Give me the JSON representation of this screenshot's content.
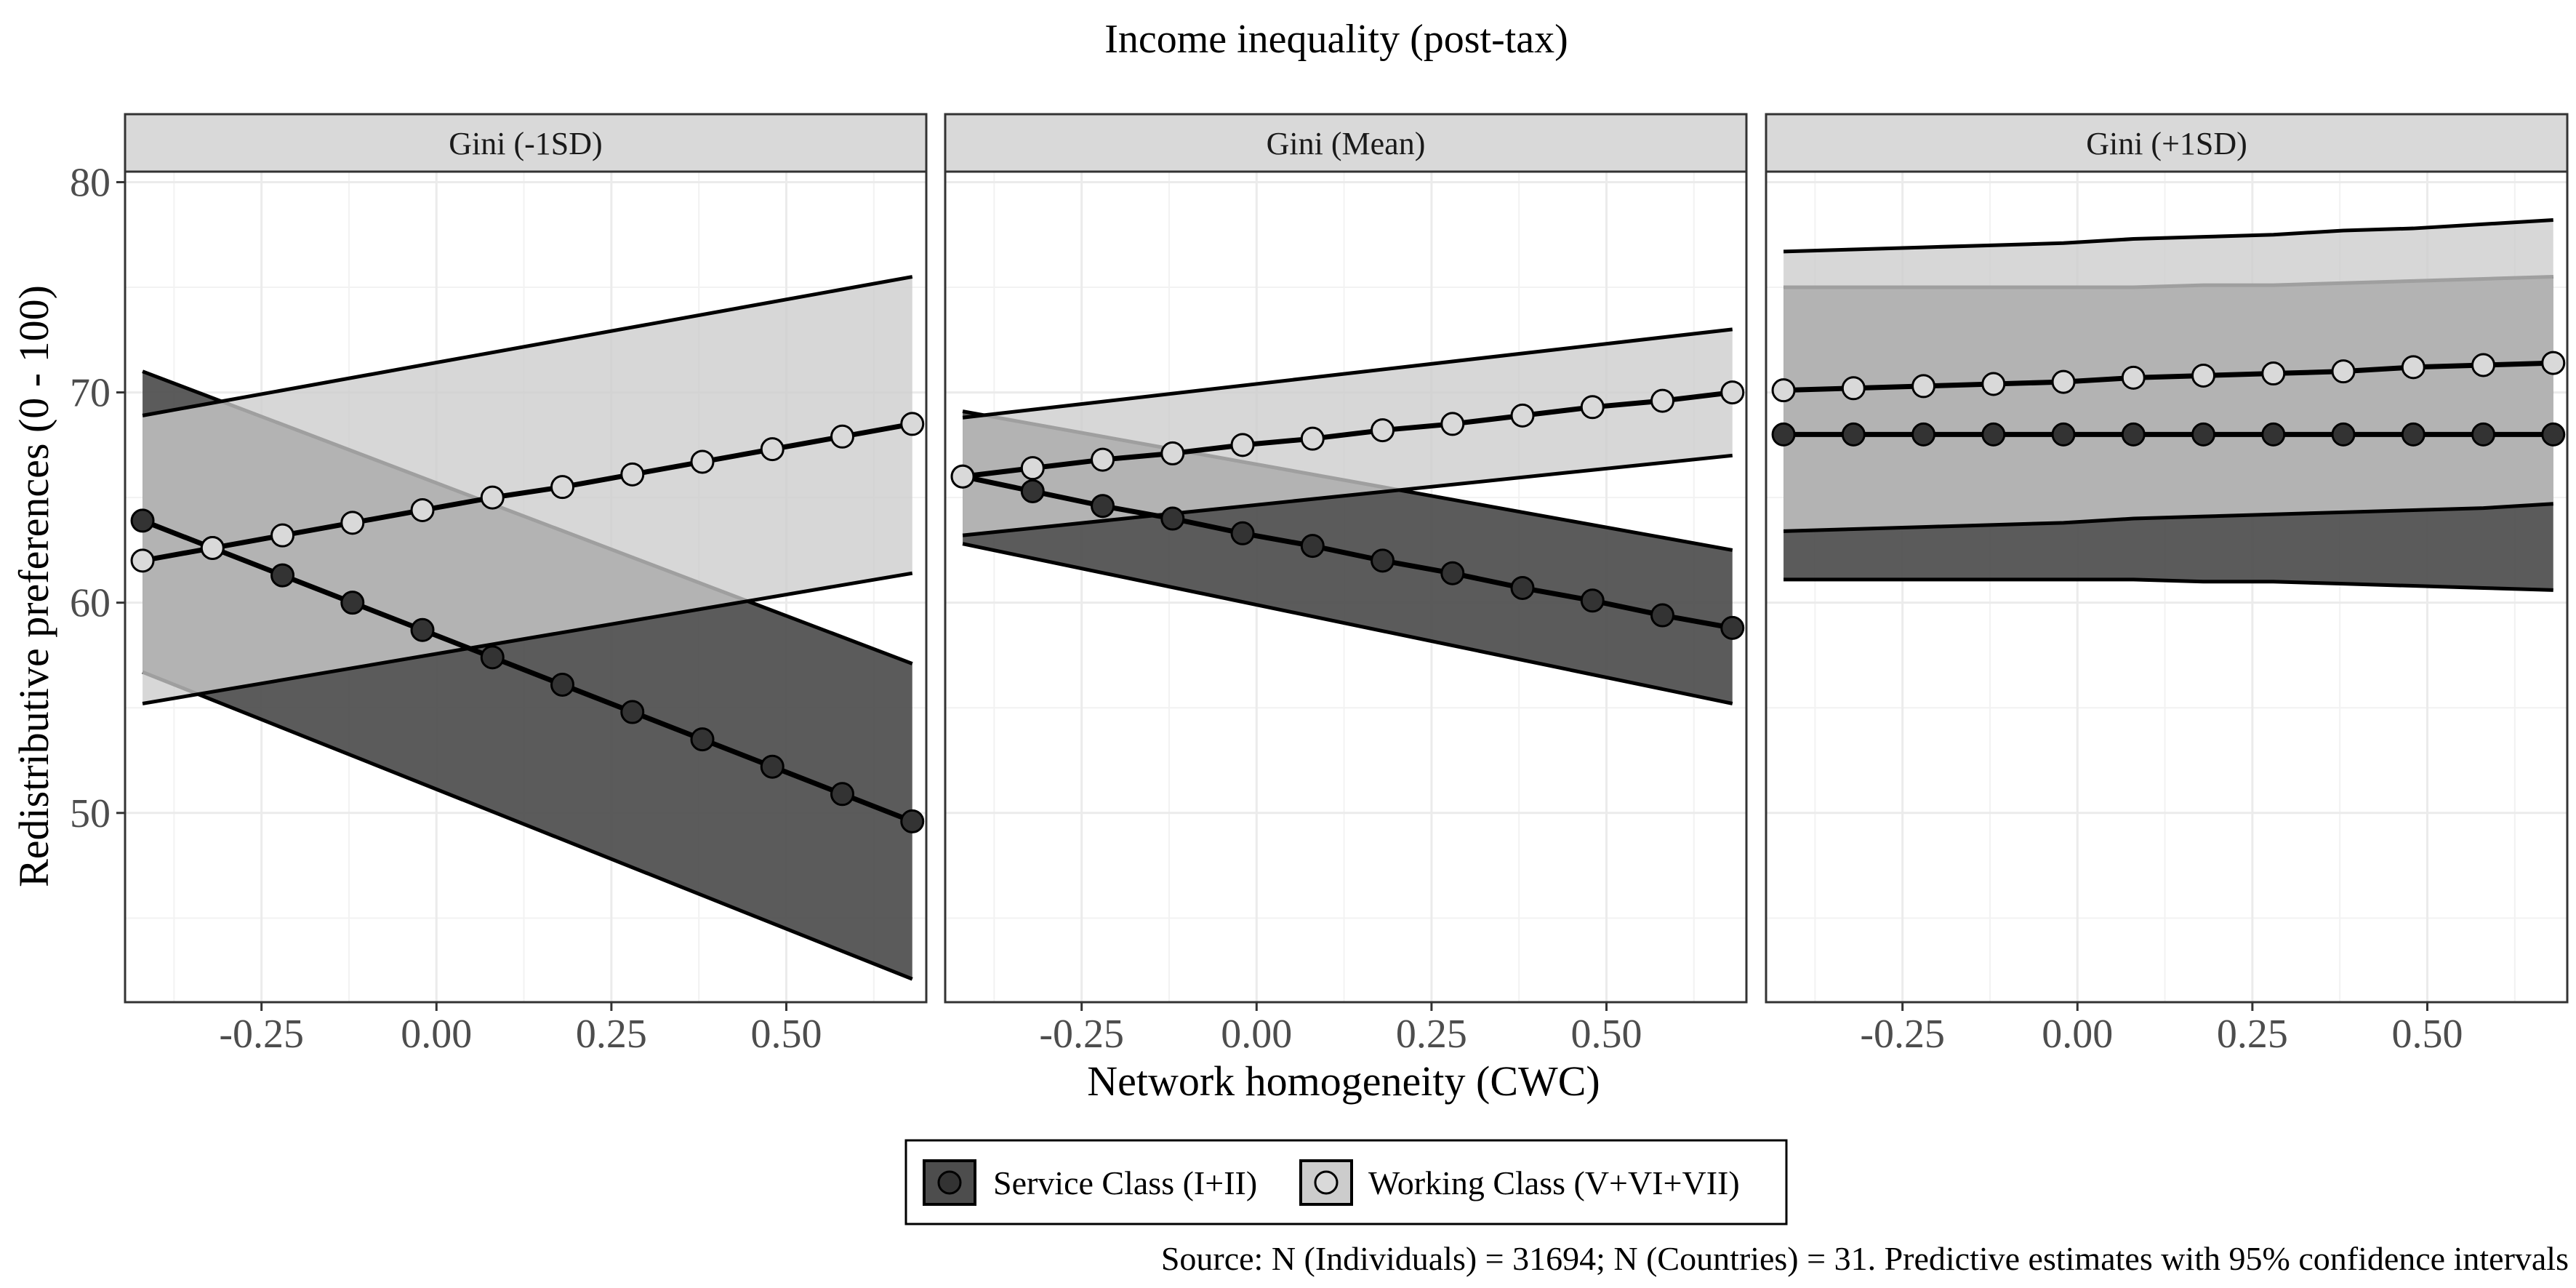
{
  "chart_data": {
    "type": "line",
    "title": "Income inequality (post-tax)",
    "xlabel": "Network homogeneity (CWC)",
    "ylabel": "Redistributive preferences (0 - 100)",
    "caption": "Source: N (Individuals) = 31694; N (Countries) = 31. Predictive estimates with 95% confidence intervals",
    "xlim": [
      -0.445,
      0.7
    ],
    "ylim": [
      41,
      80.5
    ],
    "x_ticks": [
      -0.25,
      0.0,
      0.25,
      0.5
    ],
    "x_tick_labels": [
      "-0.25",
      "0.00",
      "0.25",
      "0.50"
    ],
    "y_ticks": [
      50,
      60,
      70,
      80
    ],
    "y_tick_labels": [
      "50",
      "60",
      "70",
      "80"
    ],
    "grid": true,
    "legend_position": "bottom",
    "colors": {
      "service_fill": "#4d4d4d",
      "working_fill": "#cccccc",
      "service_point": "#333333",
      "working_point": "#d9d9d9",
      "strip_background": "#d9d9d9"
    },
    "x": [
      -0.42,
      -0.32,
      -0.22,
      -0.12,
      -0.02,
      0.08,
      0.18,
      0.28,
      0.38,
      0.48,
      0.58,
      0.68
    ],
    "series_names": [
      "Service Class (I+II)",
      "Working Class (V+VI+VII)"
    ],
    "panels": [
      {
        "label": "Gini (-1SD)",
        "series": [
          {
            "name": "Service Class (I+II)",
            "values": [
              63.9,
              62.6,
              61.3,
              60.0,
              58.7,
              57.4,
              56.1,
              54.8,
              53.5,
              52.2,
              50.9,
              49.6
            ],
            "ci_lower_ends": [
              56.7,
              42.1
            ],
            "ci_upper_ends": [
              71.0,
              57.1
            ]
          },
          {
            "name": "Working Class (V+VI+VII)",
            "values": [
              62.0,
              62.6,
              63.2,
              63.8,
              64.4,
              65.0,
              65.5,
              66.1,
              66.7,
              67.3,
              67.9,
              68.5
            ],
            "ci_lower_ends": [
              55.2,
              61.4
            ],
            "ci_upper_ends": [
              68.9,
              75.5
            ]
          }
        ]
      },
      {
        "label": "Gini (Mean)",
        "series": [
          {
            "name": "Service Class (I+II)",
            "values": [
              66.0,
              65.3,
              64.6,
              64.0,
              63.3,
              62.7,
              62.0,
              61.4,
              60.7,
              60.1,
              59.4,
              58.8
            ],
            "ci_lower_ends": [
              62.8,
              55.2
            ],
            "ci_upper_ends": [
              69.1,
              62.5
            ]
          },
          {
            "name": "Working Class (V+VI+VII)",
            "values": [
              66.0,
              66.4,
              66.8,
              67.1,
              67.5,
              67.8,
              68.2,
              68.5,
              68.9,
              69.3,
              69.6,
              70.0
            ],
            "ci_lower_ends": [
              63.2,
              67.0
            ],
            "ci_upper_ends": [
              68.8,
              73.0
            ]
          }
        ]
      },
      {
        "label": "Gini (+1SD)",
        "series": [
          {
            "name": "Service Class (I+II)",
            "values": [
              68.0,
              68.0,
              68.0,
              68.0,
              68.0,
              68.0,
              68.0,
              68.0,
              68.0,
              68.0,
              68.0,
              68.0
            ],
            "ci_lower": [
              61.1,
              61.1,
              61.1,
              61.1,
              61.1,
              61.1,
              61.0,
              61.0,
              60.9,
              60.8,
              60.7,
              60.6
            ],
            "ci_upper": [
              75.0,
              75.0,
              75.0,
              75.0,
              75.0,
              75.0,
              75.1,
              75.1,
              75.2,
              75.3,
              75.4,
              75.5
            ]
          },
          {
            "name": "Working Class (V+VI+VII)",
            "values": [
              70.1,
              70.2,
              70.3,
              70.4,
              70.5,
              70.7,
              70.8,
              70.9,
              71.0,
              71.2,
              71.3,
              71.4
            ],
            "ci_lower": [
              63.4,
              63.5,
              63.6,
              63.7,
              63.8,
              64.0,
              64.1,
              64.2,
              64.3,
              64.4,
              64.5,
              64.7
            ],
            "ci_upper": [
              76.7,
              76.8,
              76.9,
              77.0,
              77.1,
              77.3,
              77.4,
              77.5,
              77.7,
              77.8,
              78.0,
              78.2
            ]
          }
        ]
      }
    ]
  }
}
